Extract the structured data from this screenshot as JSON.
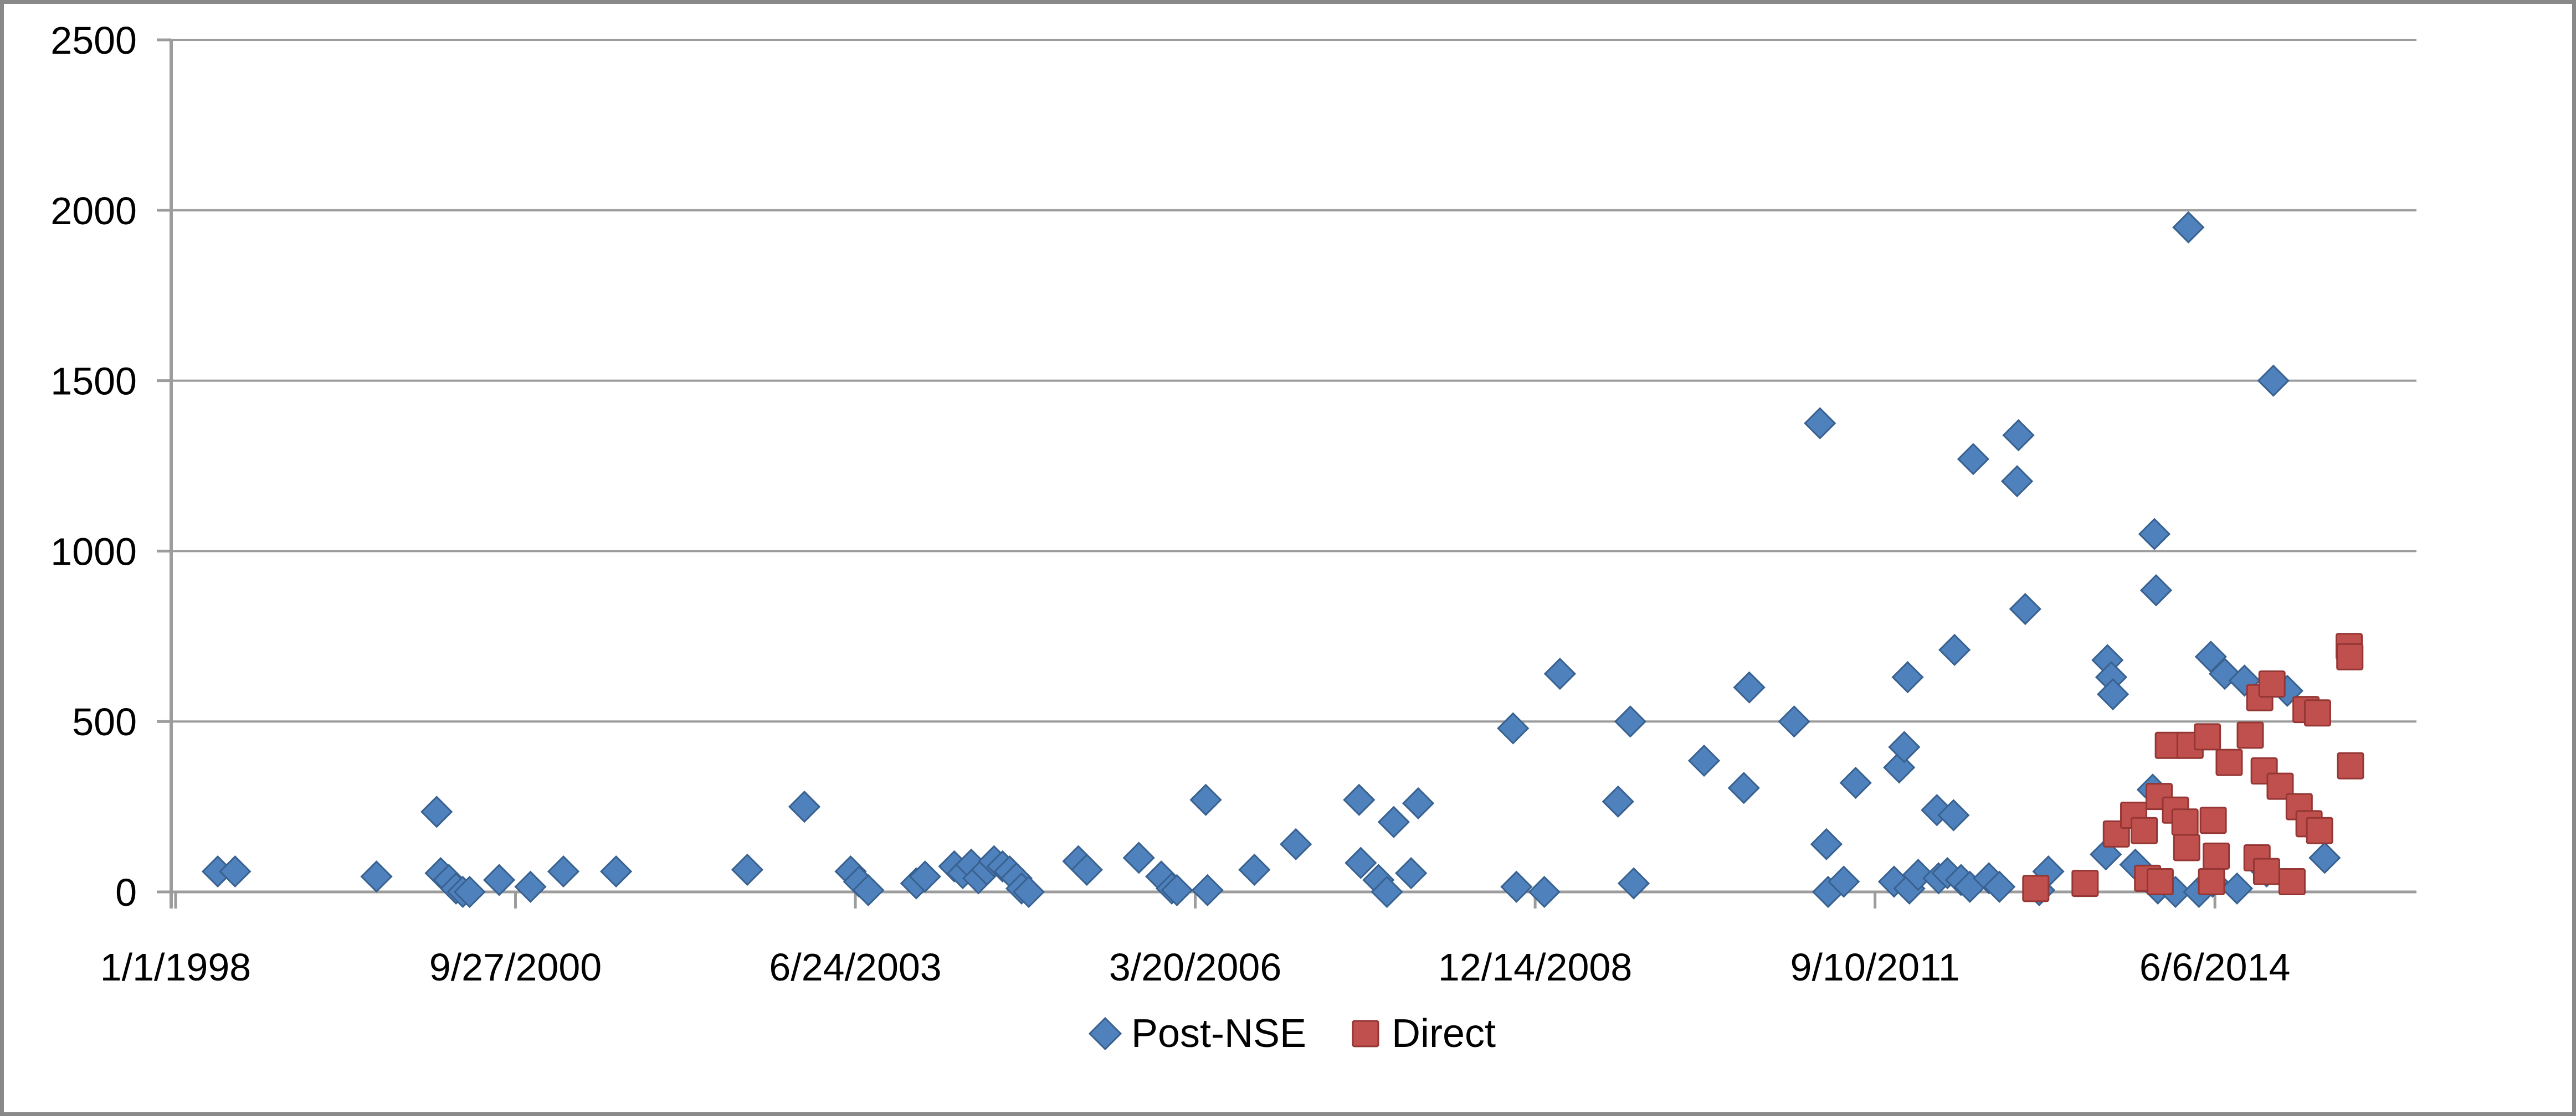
{
  "chart_data": {
    "type": "scatter",
    "title": "",
    "grid": true,
    "legend_position": "bottom-center",
    "x_axis": {
      "type": "date",
      "epoch": "1998-01-01",
      "tick_interval_days": 1000,
      "ticks": [
        {
          "label": "1/1/1998",
          "day": 0
        },
        {
          "label": "9/27/2000",
          "day": 1000
        },
        {
          "label": "6/24/2003",
          "day": 2000
        },
        {
          "label": "3/20/2006",
          "day": 3000
        },
        {
          "label": "12/14/2008",
          "day": 4000
        },
        {
          "label": "9/10/2011",
          "day": 5000
        },
        {
          "label": "6/6/2014",
          "day": 6000
        }
      ]
    },
    "y_axis": {
      "min": 0,
      "max": 2500,
      "step": 500,
      "tick_labels": [
        "0",
        "500",
        "1000",
        "1500",
        "2000",
        "2500"
      ]
    },
    "series": [
      {
        "name": "Post-NSE",
        "marker": "diamond",
        "color": "#4F81BD",
        "border_color": "#38618F",
        "points": [
          [
            "1998-05-05",
            60
          ],
          [
            "1998-06-25",
            60
          ],
          [
            "1999-08-15",
            45
          ],
          [
            "2000-02-08",
            235
          ],
          [
            "2000-02-20",
            55
          ],
          [
            "2000-03-15",
            35
          ],
          [
            "2000-04-05",
            10
          ],
          [
            "2000-04-25",
            0
          ],
          [
            "2000-05-15",
            0
          ],
          [
            "2000-08-10",
            35
          ],
          [
            "2000-11-10",
            15
          ],
          [
            "2001-02-15",
            60
          ],
          [
            "2001-07-20",
            60
          ],
          [
            "2002-08-10",
            65
          ],
          [
            "2003-01-25",
            250
          ],
          [
            "2003-06-10",
            60
          ],
          [
            "2003-07-05",
            30
          ],
          [
            "2003-08-01",
            5
          ],
          [
            "2003-12-20",
            25
          ],
          [
            "2004-01-15",
            45
          ],
          [
            "2004-04-10",
            75
          ],
          [
            "2004-05-05",
            55
          ],
          [
            "2004-05-30",
            80
          ],
          [
            "2004-06-20",
            40
          ],
          [
            "2004-07-15",
            65
          ],
          [
            "2004-08-05",
            90
          ],
          [
            "2004-08-30",
            75
          ],
          [
            "2004-09-20",
            60
          ],
          [
            "2004-10-10",
            40
          ],
          [
            "2004-10-25",
            10
          ],
          [
            "2004-11-15",
            0
          ],
          [
            "2005-04-10",
            90
          ],
          [
            "2005-05-05",
            65
          ],
          [
            "2005-10-05",
            100
          ],
          [
            "2005-12-10",
            45
          ],
          [
            "2006-01-10",
            10
          ],
          [
            "2006-01-25",
            5
          ],
          [
            "2006-04-20",
            270
          ],
          [
            "2006-04-25",
            5
          ],
          [
            "2006-09-10",
            65
          ],
          [
            "2007-01-10",
            140
          ],
          [
            "2007-07-15",
            270
          ],
          [
            "2007-07-20",
            85
          ],
          [
            "2007-09-10",
            35
          ],
          [
            "2007-10-05",
            0
          ],
          [
            "2007-10-25",
            205
          ],
          [
            "2007-12-15",
            55
          ],
          [
            "2008-01-05",
            260
          ],
          [
            "2008-10-10",
            480
          ],
          [
            "2008-10-20",
            15
          ],
          [
            "2009-01-10",
            0
          ],
          [
            "2009-02-25",
            640
          ],
          [
            "2009-08-15",
            265
          ],
          [
            "2009-09-20",
            500
          ],
          [
            "2009-09-30",
            25
          ],
          [
            "2010-04-25",
            385
          ],
          [
            "2010-08-20",
            305
          ],
          [
            "2010-09-05",
            600
          ],
          [
            "2011-01-15",
            500
          ],
          [
            "2011-04-01",
            1375
          ],
          [
            "2011-04-20",
            140
          ],
          [
            "2011-04-25",
            0
          ],
          [
            "2011-06-10",
            30
          ],
          [
            "2011-07-15",
            320
          ],
          [
            "2011-11-05",
            30
          ],
          [
            "2011-11-20",
            365
          ],
          [
            "2011-12-05",
            425
          ],
          [
            "2011-12-15",
            630
          ],
          [
            "2011-12-20",
            10
          ],
          [
            "2012-01-15",
            50
          ],
          [
            "2012-03-10",
            240
          ],
          [
            "2012-03-15",
            40
          ],
          [
            "2012-04-10",
            55
          ],
          [
            "2012-04-28",
            225
          ],
          [
            "2012-05-01",
            710
          ],
          [
            "2012-05-20",
            35
          ],
          [
            "2012-06-15",
            15
          ],
          [
            "2012-06-25",
            1270
          ],
          [
            "2012-08-10",
            40
          ],
          [
            "2012-09-10",
            15
          ],
          [
            "2012-11-01",
            1205
          ],
          [
            "2012-11-05",
            1340
          ],
          [
            "2012-11-25",
            830
          ],
          [
            "2013-01-05",
            5
          ],
          [
            "2013-02-01",
            60
          ],
          [
            "2013-07-20",
            110
          ],
          [
            "2013-07-25",
            680
          ],
          [
            "2013-08-05",
            630
          ],
          [
            "2013-08-10",
            580
          ],
          [
            "2013-10-15",
            80
          ],
          [
            "2013-12-05",
            300
          ],
          [
            "2013-12-10",
            1050
          ],
          [
            "2013-12-15",
            885
          ],
          [
            "2013-12-20",
            10
          ],
          [
            "2014-02-10",
            0
          ],
          [
            "2014-03-20",
            1950
          ],
          [
            "2014-04-20",
            0
          ],
          [
            "2014-05-25",
            690
          ],
          [
            "2014-05-30",
            30
          ],
          [
            "2014-07-05",
            640
          ],
          [
            "2014-08-10",
            10
          ],
          [
            "2014-09-01",
            620
          ],
          [
            "2014-11-05",
            60
          ],
          [
            "2014-11-25",
            1500
          ],
          [
            "2015-01-05",
            590
          ],
          [
            "2015-04-25",
            100
          ]
        ]
      },
      {
        "name": "Direct",
        "marker": "square",
        "color": "#C0504D",
        "border_color": "#943634",
        "points": [
          [
            "2012-12-26",
            10
          ],
          [
            "2013-05-20",
            25
          ],
          [
            "2013-08-20",
            170
          ],
          [
            "2013-10-10",
            225
          ],
          [
            "2013-11-10",
            180
          ],
          [
            "2013-11-20",
            40
          ],
          [
            "2013-12-24",
            280
          ],
          [
            "2013-12-27",
            30
          ],
          [
            "2014-01-20",
            430
          ],
          [
            "2014-02-10",
            240
          ],
          [
            "2014-03-10",
            205
          ],
          [
            "2014-03-15",
            130
          ],
          [
            "2014-03-25",
            430
          ],
          [
            "2014-05-15",
            455
          ],
          [
            "2014-05-27",
            30
          ],
          [
            "2014-06-01",
            210
          ],
          [
            "2014-06-10",
            105
          ],
          [
            "2014-07-18",
            380
          ],
          [
            "2014-09-18",
            460
          ],
          [
            "2014-10-08",
            100
          ],
          [
            "2014-10-16",
            570
          ],
          [
            "2014-10-29",
            355
          ],
          [
            "2014-11-05",
            60
          ],
          [
            "2014-11-21",
            610
          ],
          [
            "2014-12-15",
            310
          ],
          [
            "2015-01-19",
            30
          ],
          [
            "2015-02-09",
            250
          ],
          [
            "2015-03-01",
            535
          ],
          [
            "2015-03-10",
            200
          ],
          [
            "2015-04-04",
            525
          ],
          [
            "2015-04-10",
            180
          ],
          [
            "2015-07-06",
            720
          ],
          [
            "2015-07-08",
            690
          ],
          [
            "2015-07-10",
            370
          ]
        ]
      }
    ]
  },
  "colors": {
    "gridline": "#9C9C9C",
    "axis": "#9C9C9C",
    "tick_text": "#000000",
    "frame_border": "#898989",
    "background": "#FFFFFF"
  }
}
